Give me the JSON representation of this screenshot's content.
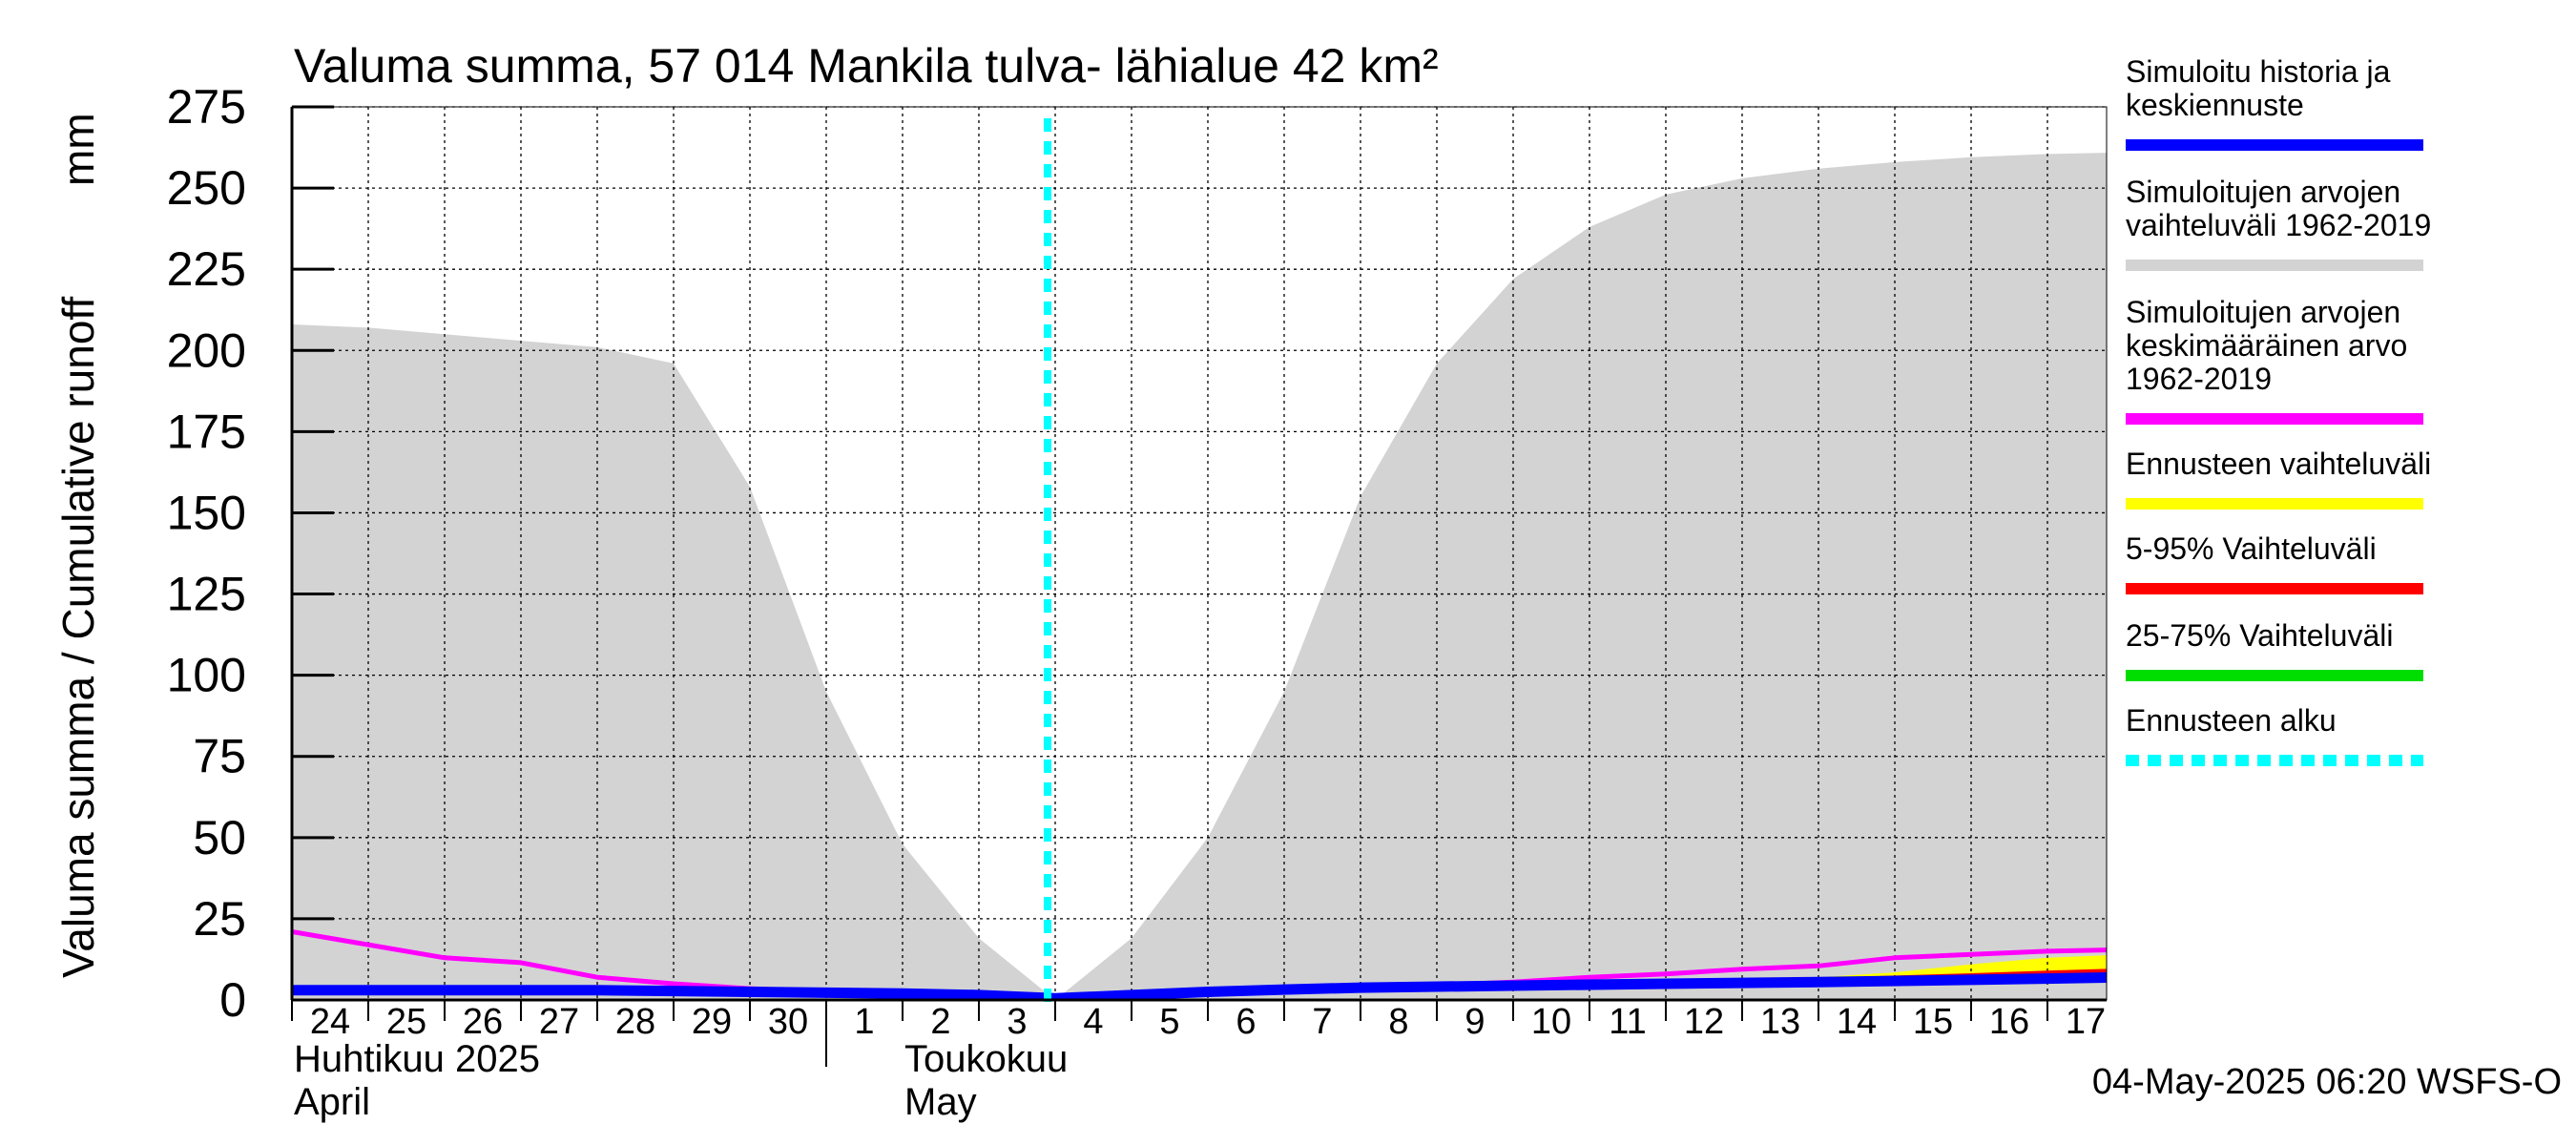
{
  "chart_data": {
    "type": "area",
    "title": "Valuma summa, 57 014 Mankila tulva- lähialue 42 km²",
    "ylabel": "Valuma summa / Cumulative runoff",
    "yunit": "mm",
    "ylim": [
      0,
      275
    ],
    "yticks": [
      0,
      25,
      50,
      75,
      100,
      125,
      150,
      175,
      200,
      225,
      250,
      275
    ],
    "x_dates": [
      "2025-04-24",
      "2025-04-25",
      "2025-04-26",
      "2025-04-27",
      "2025-04-28",
      "2025-04-29",
      "2025-04-30",
      "2025-05-01",
      "2025-05-02",
      "2025-05-03",
      "2025-05-04",
      "2025-05-05",
      "2025-05-06",
      "2025-05-07",
      "2025-05-08",
      "2025-05-09",
      "2025-05-10",
      "2025-05-11",
      "2025-05-12",
      "2025-05-13",
      "2025-05-14",
      "2025-05-15",
      "2025-05-16",
      "2025-05-17"
    ],
    "x_tick_labels": [
      "24",
      "25",
      "26",
      "27",
      "28",
      "29",
      "30",
      "1",
      "2",
      "3",
      "4",
      "5",
      "6",
      "7",
      "8",
      "9",
      "10",
      "11",
      "12",
      "13",
      "14",
      "15",
      "16",
      "17"
    ],
    "month_labels": [
      {
        "fi": "Huhtikuu  2025",
        "en": "April",
        "start_date": "2025-04-24"
      },
      {
        "fi": "Toukokuu",
        "en": "May",
        "start_date": "2025-05-02"
      }
    ],
    "month_separator_date": "2025-05-01",
    "grid": true,
    "forecast_start_date": "2025-05-04",
    "series": [
      {
        "name": "Simuloitujen arvojen vaihteluväli 1962-2019",
        "kind": "band",
        "color": "#d3d3d3",
        "x": [
          "2025-04-24",
          "2025-04-25",
          "2025-04-26",
          "2025-04-27",
          "2025-04-28",
          "2025-04-29",
          "2025-04-30",
          "2025-05-01",
          "2025-05-02",
          "2025-05-03",
          "2025-05-04",
          "2025-05-05",
          "2025-05-06",
          "2025-05-07",
          "2025-05-08",
          "2025-05-09",
          "2025-05-10",
          "2025-05-11",
          "2025-05-12",
          "2025-05-13",
          "2025-05-14",
          "2025-05-15",
          "2025-05-16",
          "2025-05-17",
          "2025-05-18"
        ],
        "upper": [
          208,
          207,
          205,
          203,
          201,
          196,
          158,
          95,
          48,
          19,
          0,
          19,
          50,
          95,
          155,
          196,
          222,
          238,
          248,
          253,
          256,
          258,
          259.5,
          260.5,
          261
        ],
        "lower": [
          0,
          0,
          0,
          0,
          0,
          0,
          0,
          0,
          0,
          0,
          0,
          0,
          0,
          0,
          0,
          0,
          0,
          0,
          0,
          0,
          0,
          0,
          0,
          0,
          0
        ]
      },
      {
        "name": "Ennusteen vaihteluväli",
        "kind": "band",
        "color": "#ffff00",
        "x": [
          "2025-05-04",
          "2025-05-06",
          "2025-05-08",
          "2025-05-10",
          "2025-05-12",
          "2025-05-14",
          "2025-05-15",
          "2025-05-16",
          "2025-05-17",
          "2025-05-18"
        ],
        "upper": [
          0.5,
          2.5,
          4,
          5,
          6,
          7,
          8.5,
          11,
          13,
          14
        ],
        "lower": [
          0.5,
          2,
          3,
          4,
          4.5,
          5,
          5.5,
          6,
          6.5,
          7
        ]
      },
      {
        "name": "5-95% Vaihteluväli",
        "kind": "line",
        "color": "#ff0000",
        "x": [
          "2025-05-04",
          "2025-05-06",
          "2025-05-08",
          "2025-05-10",
          "2025-05-12",
          "2025-05-14",
          "2025-05-15",
          "2025-05-16",
          "2025-05-17",
          "2025-05-18"
        ],
        "values": [
          0.5,
          2.2,
          3.5,
          4.5,
          5.2,
          6,
          6.8,
          7.5,
          8.3,
          9
        ]
      },
      {
        "name": "25-75% Vaihteluväli",
        "kind": "line",
        "color": "#00dd00",
        "x": [
          "2025-05-04",
          "2025-05-06",
          "2025-05-08",
          "2025-05-10",
          "2025-05-12",
          "2025-05-14",
          "2025-05-15",
          "2025-05-16",
          "2025-05-17",
          "2025-05-18"
        ],
        "values": [
          0.5,
          2.1,
          3.3,
          4.3,
          5,
          5.6,
          6.2,
          6.7,
          7.2,
          7.6
        ]
      },
      {
        "name": "Simuloitujen arvojen keskimääräinen arvo 1962-2019",
        "kind": "line",
        "color": "#ff00ff",
        "x": [
          "2025-04-24",
          "2025-04-25",
          "2025-04-26",
          "2025-04-27",
          "2025-04-28",
          "2025-04-29",
          "2025-04-30",
          "2025-05-01",
          "2025-05-02",
          "2025-05-03",
          "2025-05-04",
          "2025-05-05",
          "2025-05-06",
          "2025-05-07",
          "2025-05-08",
          "2025-05-09",
          "2025-05-10",
          "2025-05-11",
          "2025-05-12",
          "2025-05-13",
          "2025-05-14",
          "2025-05-15",
          "2025-05-16",
          "2025-05-17",
          "2025-05-18"
        ],
        "values": [
          21,
          17,
          13,
          11.5,
          7,
          5,
          3.5,
          2.5,
          1.5,
          0.5,
          0,
          1,
          2,
          3,
          4,
          4.5,
          5.5,
          7,
          8,
          9.5,
          10.5,
          13,
          14,
          15,
          15.5
        ]
      },
      {
        "name": "Simuloitu historia ja keskiennuste",
        "kind": "line",
        "color": "#0000ff",
        "x": [
          "2025-04-24",
          "2025-04-26",
          "2025-04-28",
          "2025-04-30",
          "2025-05-02",
          "2025-05-03",
          "2025-05-04",
          "2025-05-05",
          "2025-05-06",
          "2025-05-07",
          "2025-05-08",
          "2025-05-10",
          "2025-05-12",
          "2025-05-14",
          "2025-05-16",
          "2025-05-18"
        ],
        "values": [
          3,
          3,
          3,
          2.5,
          2,
          1.5,
          0.5,
          1.5,
          2.5,
          3.2,
          3.8,
          4.4,
          5,
          5.5,
          6.2,
          7
        ]
      }
    ],
    "legend": {
      "placement": "right",
      "items": [
        {
          "label_lines": [
            "Simuloitu historia ja",
            "keskiennuste"
          ],
          "color": "#0000ff",
          "style": "solid"
        },
        {
          "label_lines": [
            "Simuloitujen arvojen",
            "vaihteluväli 1962-2019"
          ],
          "color": "#d3d3d3",
          "style": "solid"
        },
        {
          "label_lines": [
            "Simuloitujen arvojen",
            "keskimääräinen arvo",
            "   1962-2019"
          ],
          "color": "#ff00ff",
          "style": "solid"
        },
        {
          "label_lines": [
            "Ennusteen vaihteluväli"
          ],
          "color": "#ffff00",
          "style": "solid"
        },
        {
          "label_lines": [
            "5-95% Vaihteluväli"
          ],
          "color": "#ff0000",
          "style": "solid"
        },
        {
          "label_lines": [
            "25-75% Vaihteluväli"
          ],
          "color": "#00dd00",
          "style": "solid"
        },
        {
          "label_lines": [
            "Ennusteen alku"
          ],
          "color": "#00ffff",
          "style": "dashed"
        }
      ]
    },
    "footer": "04-May-2025 06:20 WSFS-O"
  }
}
